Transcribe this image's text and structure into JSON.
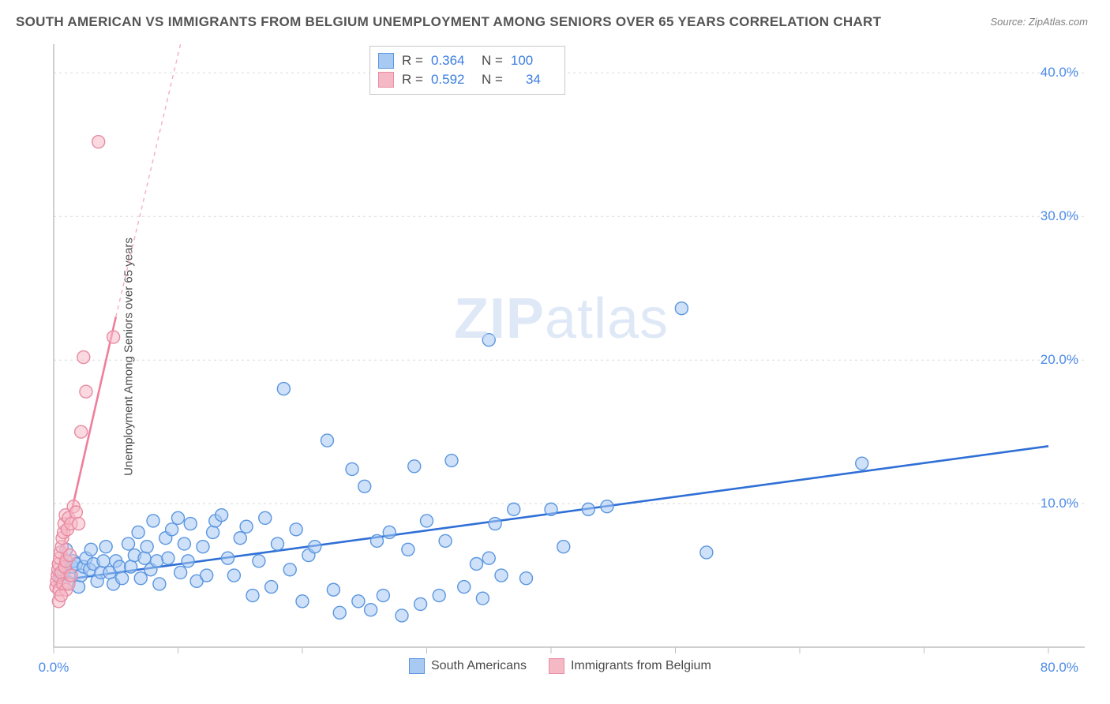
{
  "title": "SOUTH AMERICAN VS IMMIGRANTS FROM BELGIUM UNEMPLOYMENT AMONG SENIORS OVER 65 YEARS CORRELATION CHART",
  "source": "Source: ZipAtlas.com",
  "watermark_a": "ZIP",
  "watermark_b": "atlas",
  "ylabel": "Unemployment Among Seniors over 65 years",
  "chart": {
    "type": "scatter",
    "background_color": "#ffffff",
    "axis_color": "#bfbfbf",
    "grid_color": "#d9d9d9",
    "grid_dash": "3,4",
    "xlim": [
      0,
      80
    ],
    "ylim": [
      0,
      42
    ],
    "ytick_values": [
      10,
      20,
      30,
      40
    ],
    "ytick_labels": [
      "10.0%",
      "20.0%",
      "30.0%",
      "40.0%"
    ],
    "xtick_left_value": 0,
    "xtick_left_label": "0.0%",
    "xtick_right_value": 80,
    "xtick_right_label": "80.0%",
    "xgrid_values": [
      0,
      10,
      20,
      30,
      40,
      50,
      60,
      70,
      80
    ],
    "marker_radius": 8,
    "marker_stroke_width": 1.4,
    "series": [
      {
        "name": "South Americans",
        "fill": "#a7c9f2",
        "fill_opacity": 0.55,
        "stroke": "#5a96e0",
        "R": "0.364",
        "N": "100",
        "trend": {
          "x1": 0,
          "y1": 4.6,
          "x2": 80,
          "y2": 14.0,
          "color": "#2f6fd6",
          "width": 2.6
        },
        "points": [
          [
            0.5,
            5.0
          ],
          [
            0.6,
            4.8
          ],
          [
            0.8,
            5.2
          ],
          [
            0.9,
            5.5
          ],
          [
            1.0,
            6.8
          ],
          [
            1.2,
            4.5
          ],
          [
            1.3,
            5.0
          ],
          [
            1.5,
            5.6
          ],
          [
            1.6,
            6.0
          ],
          [
            1.8,
            5.8
          ],
          [
            2.0,
            4.2
          ],
          [
            2.2,
            5.0
          ],
          [
            2.4,
            5.6
          ],
          [
            2.6,
            6.2
          ],
          [
            2.9,
            5.4
          ],
          [
            3.0,
            6.8
          ],
          [
            3.2,
            5.8
          ],
          [
            3.5,
            4.6
          ],
          [
            3.8,
            5.2
          ],
          [
            4.0,
            6.0
          ],
          [
            4.2,
            7.0
          ],
          [
            4.5,
            5.2
          ],
          [
            4.8,
            4.4
          ],
          [
            5.0,
            6.0
          ],
          [
            5.3,
            5.6
          ],
          [
            5.5,
            4.8
          ],
          [
            6.0,
            7.2
          ],
          [
            6.2,
            5.6
          ],
          [
            6.5,
            6.4
          ],
          [
            6.8,
            8.0
          ],
          [
            7.0,
            4.8
          ],
          [
            7.3,
            6.2
          ],
          [
            7.5,
            7.0
          ],
          [
            7.8,
            5.4
          ],
          [
            8.0,
            8.8
          ],
          [
            8.3,
            6.0
          ],
          [
            8.5,
            4.4
          ],
          [
            9.0,
            7.6
          ],
          [
            9.2,
            6.2
          ],
          [
            9.5,
            8.2
          ],
          [
            10.0,
            9.0
          ],
          [
            10.2,
            5.2
          ],
          [
            10.5,
            7.2
          ],
          [
            10.8,
            6.0
          ],
          [
            11.0,
            8.6
          ],
          [
            11.5,
            4.6
          ],
          [
            12.0,
            7.0
          ],
          [
            12.3,
            5.0
          ],
          [
            12.8,
            8.0
          ],
          [
            13.0,
            8.8
          ],
          [
            13.5,
            9.2
          ],
          [
            14.0,
            6.2
          ],
          [
            14.5,
            5.0
          ],
          [
            15.0,
            7.6
          ],
          [
            15.5,
            8.4
          ],
          [
            16.0,
            3.6
          ],
          [
            16.5,
            6.0
          ],
          [
            17.0,
            9.0
          ],
          [
            17.5,
            4.2
          ],
          [
            18.0,
            7.2
          ],
          [
            18.5,
            18.0
          ],
          [
            19.0,
            5.4
          ],
          [
            19.5,
            8.2
          ],
          [
            20.0,
            3.2
          ],
          [
            20.5,
            6.4
          ],
          [
            21.0,
            7.0
          ],
          [
            22.0,
            14.4
          ],
          [
            22.5,
            4.0
          ],
          [
            23.0,
            2.4
          ],
          [
            24.0,
            12.4
          ],
          [
            24.5,
            3.2
          ],
          [
            25.0,
            11.2
          ],
          [
            25.5,
            2.6
          ],
          [
            26.0,
            7.4
          ],
          [
            26.5,
            3.6
          ],
          [
            27.0,
            8.0
          ],
          [
            28.0,
            2.2
          ],
          [
            28.5,
            6.8
          ],
          [
            29.0,
            12.6
          ],
          [
            29.5,
            3.0
          ],
          [
            30.0,
            8.8
          ],
          [
            31.0,
            3.6
          ],
          [
            31.5,
            7.4
          ],
          [
            32.0,
            13.0
          ],
          [
            33.0,
            4.2
          ],
          [
            34.0,
            5.8
          ],
          [
            34.5,
            3.4
          ],
          [
            35.0,
            6.2
          ],
          [
            35.5,
            8.6
          ],
          [
            35.0,
            21.4
          ],
          [
            37.0,
            9.6
          ],
          [
            38.0,
            4.8
          ],
          [
            40.0,
            9.6
          ],
          [
            41.0,
            7.0
          ],
          [
            43.0,
            9.6
          ],
          [
            44.5,
            9.8
          ],
          [
            50.5,
            23.6
          ],
          [
            52.5,
            6.6
          ],
          [
            65.0,
            12.8
          ],
          [
            36.0,
            5.0
          ]
        ]
      },
      {
        "name": "Immigrants from Belgium",
        "fill": "#f5b9c6",
        "fill_opacity": 0.55,
        "stroke": "#e88ba2",
        "R": "0.592",
        "N": "34",
        "trend": {
          "x1": 0,
          "y1": 4.0,
          "x2": 5.0,
          "y2": 23.0,
          "color": "#ef7d9c",
          "width": 2.6
        },
        "trend_dash": {
          "x1": 5.0,
          "y1": 23.0,
          "x2": 10.2,
          "y2": 42.0,
          "color": "#f4aebf",
          "width": 1.4,
          "dash": "5,5"
        },
        "points": [
          [
            0.2,
            4.2
          ],
          [
            0.25,
            4.6
          ],
          [
            0.3,
            5.0
          ],
          [
            0.35,
            5.4
          ],
          [
            0.4,
            5.8
          ],
          [
            0.45,
            4.0
          ],
          [
            0.5,
            6.2
          ],
          [
            0.55,
            6.6
          ],
          [
            0.6,
            5.2
          ],
          [
            0.65,
            7.0
          ],
          [
            0.7,
            7.6
          ],
          [
            0.75,
            4.4
          ],
          [
            0.8,
            8.0
          ],
          [
            0.85,
            8.6
          ],
          [
            0.9,
            5.6
          ],
          [
            0.95,
            9.2
          ],
          [
            1.0,
            6.0
          ],
          [
            1.1,
            8.2
          ],
          [
            1.2,
            9.0
          ],
          [
            1.3,
            6.4
          ],
          [
            1.4,
            8.6
          ],
          [
            1.6,
            9.8
          ],
          [
            1.0,
            4.0
          ],
          [
            1.2,
            4.4
          ],
          [
            1.4,
            5.0
          ],
          [
            1.8,
            9.4
          ],
          [
            2.2,
            15.0
          ],
          [
            2.6,
            17.8
          ],
          [
            2.4,
            20.2
          ],
          [
            4.8,
            21.6
          ],
          [
            3.6,
            35.2
          ],
          [
            0.4,
            3.2
          ],
          [
            0.6,
            3.6
          ],
          [
            2.0,
            8.6
          ]
        ]
      }
    ]
  },
  "bottom_legend": {
    "series1": "South Americans",
    "series2": "Immigrants from Belgium"
  }
}
